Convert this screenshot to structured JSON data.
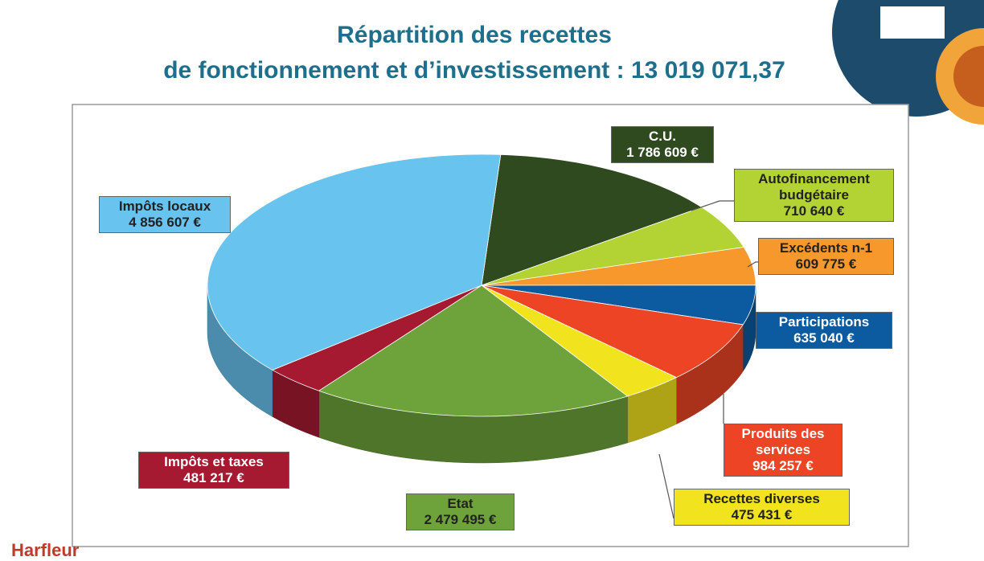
{
  "chart_data": {
    "type": "pie3d",
    "title": [
      "Répartition des recettes",
      "de fonctionnement et d’investissement : 13 019 071,37"
    ],
    "categories": [
      "C.U.",
      "Autofinancement budgétaire",
      "Excédents n-1",
      "Participations",
      "Produits des services",
      "Recettes diverses",
      "Etat",
      "Impôts et taxes",
      "Impôts locaux"
    ],
    "values": [
      1786609,
      710640,
      609775,
      635040,
      984257,
      475431,
      2479495,
      481217,
      4856607
    ],
    "value_labels": [
      "1 786 609 €",
      "710 640 €",
      "609 775 €",
      "635 040 €",
      "984 257 €",
      "475 431 €",
      "2 479 495 €",
      "481 217 €",
      "4 856 607 €"
    ],
    "colors": [
      "#2f4a1f",
      "#b3d335",
      "#f7982d",
      "#0c5aa0",
      "#ec4424",
      "#f2e31f",
      "#6da33a",
      "#a61a31",
      "#68c3ef"
    ]
  },
  "logo": "Harfleur"
}
